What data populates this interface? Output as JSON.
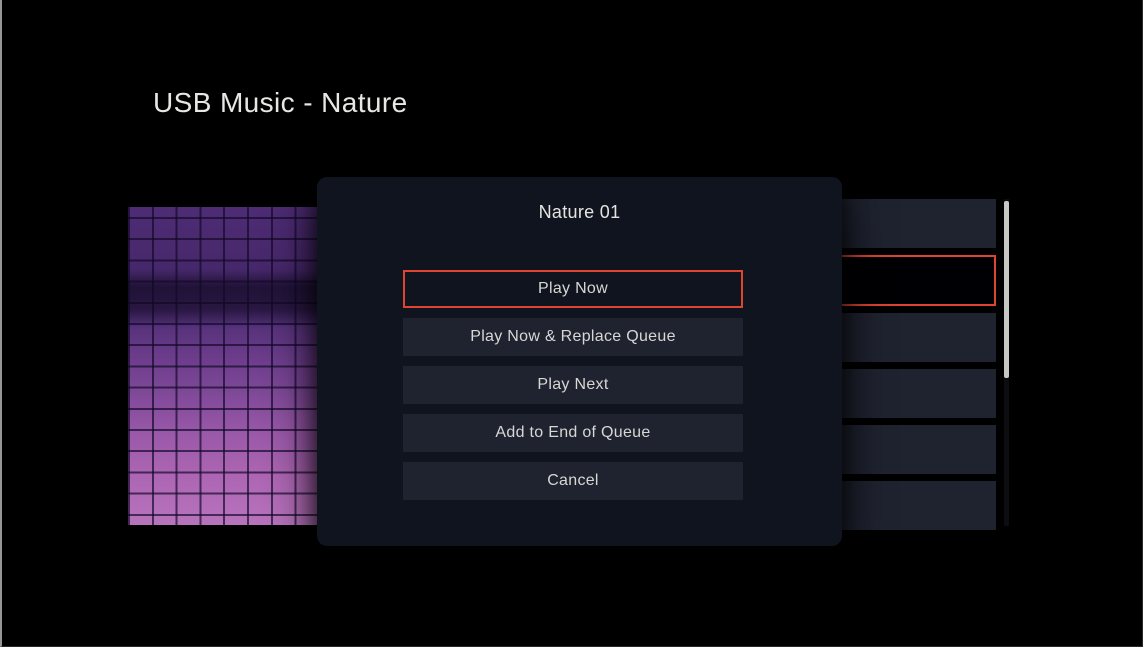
{
  "header": {
    "title": "USB Music - Nature"
  },
  "dialog": {
    "title": "Nature 01",
    "buttons": [
      {
        "label": "Play Now",
        "selected": true
      },
      {
        "label": "Play Now & Replace Queue",
        "selected": false
      },
      {
        "label": "Play Next",
        "selected": false
      },
      {
        "label": "Add to End of Queue",
        "selected": false
      },
      {
        "label": "Cancel",
        "selected": false
      }
    ]
  },
  "track_list": {
    "rows": [
      {
        "label": "",
        "highlighted": false
      },
      {
        "label": "",
        "highlighted": true
      },
      {
        "label": "",
        "highlighted": false
      },
      {
        "label": "",
        "highlighted": false
      },
      {
        "label": "",
        "highlighted": false
      },
      {
        "label": "",
        "highlighted": false
      }
    ]
  },
  "album_art": {
    "name": "purple-mosaic-tiles"
  },
  "colors": {
    "accent_red": "#df4332",
    "modal_bg": "#10141f",
    "button_bg": "#1f2330",
    "row_bg": "#1f2330",
    "scrollbar_thumb": "#c7c7c3",
    "text": "#d7d7d4"
  }
}
